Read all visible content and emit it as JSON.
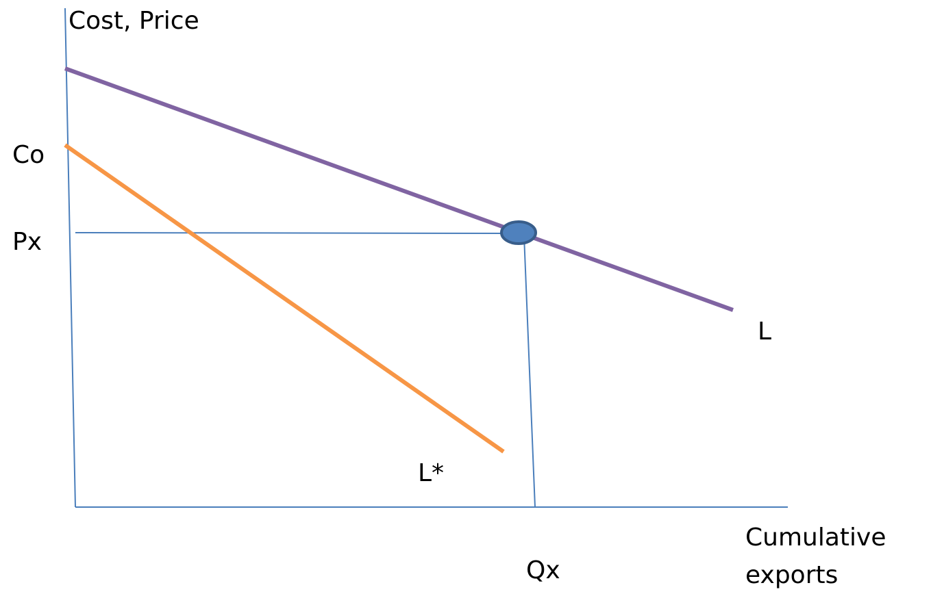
{
  "diagram": {
    "y_axis_label": "Cost, Price",
    "labels": {
      "co": "Co",
      "px": "Px",
      "l": "L",
      "l_star": "L*",
      "qx": "Qx"
    },
    "x_axis_label": {
      "lines": [
        "Cumulative",
        "exports"
      ]
    }
  }
}
